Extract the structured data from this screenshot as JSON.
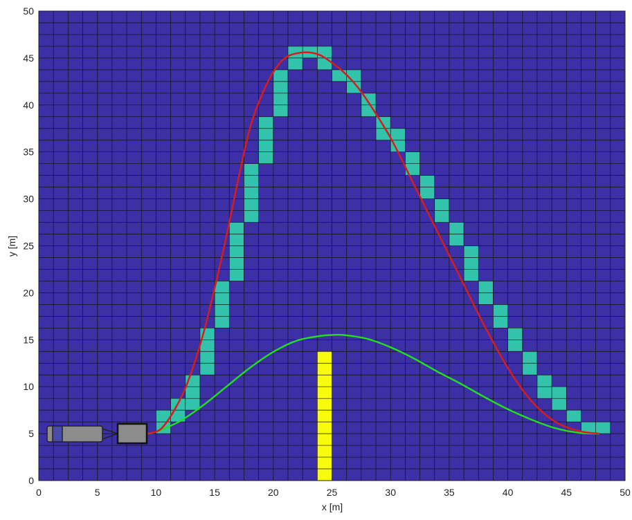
{
  "chart_data": {
    "type": "line",
    "xlabel": "x [m]",
    "ylabel": "y [m]",
    "xlim": [
      0,
      50
    ],
    "ylim": [
      0,
      50
    ],
    "xticks": [
      0,
      5,
      10,
      15,
      20,
      25,
      30,
      35,
      40,
      45,
      50
    ],
    "yticks": [
      0,
      5,
      10,
      15,
      20,
      25,
      30,
      35,
      40,
      45,
      50
    ],
    "background_color": "#3d2fa6",
    "cell_size": 1.25,
    "path_cells": {
      "color": "#33c3ad",
      "x": [
        10,
        10,
        11.25,
        11.25,
        12.5,
        12.5,
        12.5,
        13.75,
        13.75,
        13.75,
        13.75,
        15,
        15,
        15,
        15,
        16.25,
        16.25,
        16.25,
        16.25,
        16.25,
        17.5,
        17.5,
        17.5,
        17.5,
        17.5,
        18.75,
        18.75,
        18.75,
        18.75,
        20,
        20,
        20,
        20,
        21.25,
        21.25,
        22.5,
        23.75,
        23.75,
        25,
        26.25,
        26.25,
        27.5,
        27.5,
        28.75,
        28.75,
        30,
        30,
        31.25,
        31.25,
        32.5,
        32.5,
        33.75,
        33.75,
        35,
        35,
        36.25,
        36.25,
        36.25,
        37.5,
        37.5,
        38.75,
        38.75,
        40,
        40,
        41.25,
        41.25,
        42.5,
        42.5,
        43.75,
        43.75,
        45,
        46.25,
        47.5
      ],
      "y": [
        5,
        6.25,
        6.25,
        7.5,
        7.5,
        8.75,
        10,
        11.25,
        12.5,
        13.75,
        15,
        16.25,
        17.5,
        18.75,
        20,
        21.25,
        22.5,
        23.75,
        25,
        26.25,
        27.5,
        28.75,
        30,
        31.25,
        32.5,
        33.75,
        35,
        36.25,
        37.5,
        38.75,
        40,
        41.25,
        42.5,
        43.75,
        45,
        45,
        45,
        43.75,
        42.5,
        41.25,
        42.5,
        38.75,
        40,
        36.25,
        37.5,
        35,
        36.25,
        32.5,
        33.75,
        30,
        31.25,
        27.5,
        28.75,
        25,
        26.25,
        21.25,
        22.5,
        23.75,
        18.75,
        20,
        16.25,
        17.5,
        13.75,
        15,
        11.25,
        12.5,
        8.75,
        10,
        7.5,
        8.75,
        6.25,
        5,
        5
      ]
    },
    "obstacle_cells": {
      "color": "#f9fb0e",
      "x": [
        23.75,
        23.75,
        23.75,
        23.75,
        23.75,
        23.75,
        23.75,
        23.75,
        23.75,
        23.75,
        23.75
      ],
      "y": [
        0,
        1.25,
        2.5,
        3.75,
        5,
        6.25,
        7.5,
        8.75,
        10,
        11.25,
        12.5
      ]
    },
    "series": [
      {
        "color": "#22dd22",
        "x": [
          9.2,
          10,
          12,
          14,
          16,
          18,
          20,
          22,
          24,
          25,
          26,
          28,
          30,
          32,
          34,
          36,
          38,
          40,
          42,
          44,
          46,
          47.8
        ],
        "y": [
          5,
          5.2,
          6.3,
          8,
          10,
          12,
          13.7,
          14.9,
          15.4,
          15.5,
          15.5,
          15.1,
          14.2,
          13,
          11.6,
          10.3,
          8.9,
          7.6,
          6.5,
          5.6,
          5.1,
          5
        ]
      },
      {
        "color": "#d81c1c",
        "x": [
          9.2,
          10.5,
          12,
          13,
          14,
          15,
          16,
          17,
          18,
          19,
          20,
          21,
          22,
          23,
          24,
          25,
          26,
          27,
          28,
          30,
          32,
          34,
          36,
          38,
          40,
          42,
          44,
          46,
          47.8
        ],
        "y": [
          5,
          5.6,
          8.5,
          11.5,
          15.5,
          20.5,
          26,
          32,
          37.5,
          41,
          43.5,
          45,
          45.5,
          45.6,
          45.3,
          44.5,
          43.5,
          42.2,
          40.5,
          36.5,
          31.5,
          26.5,
          21.5,
          16.5,
          12,
          8.5,
          6.3,
          5.3,
          5
        ]
      }
    ]
  }
}
